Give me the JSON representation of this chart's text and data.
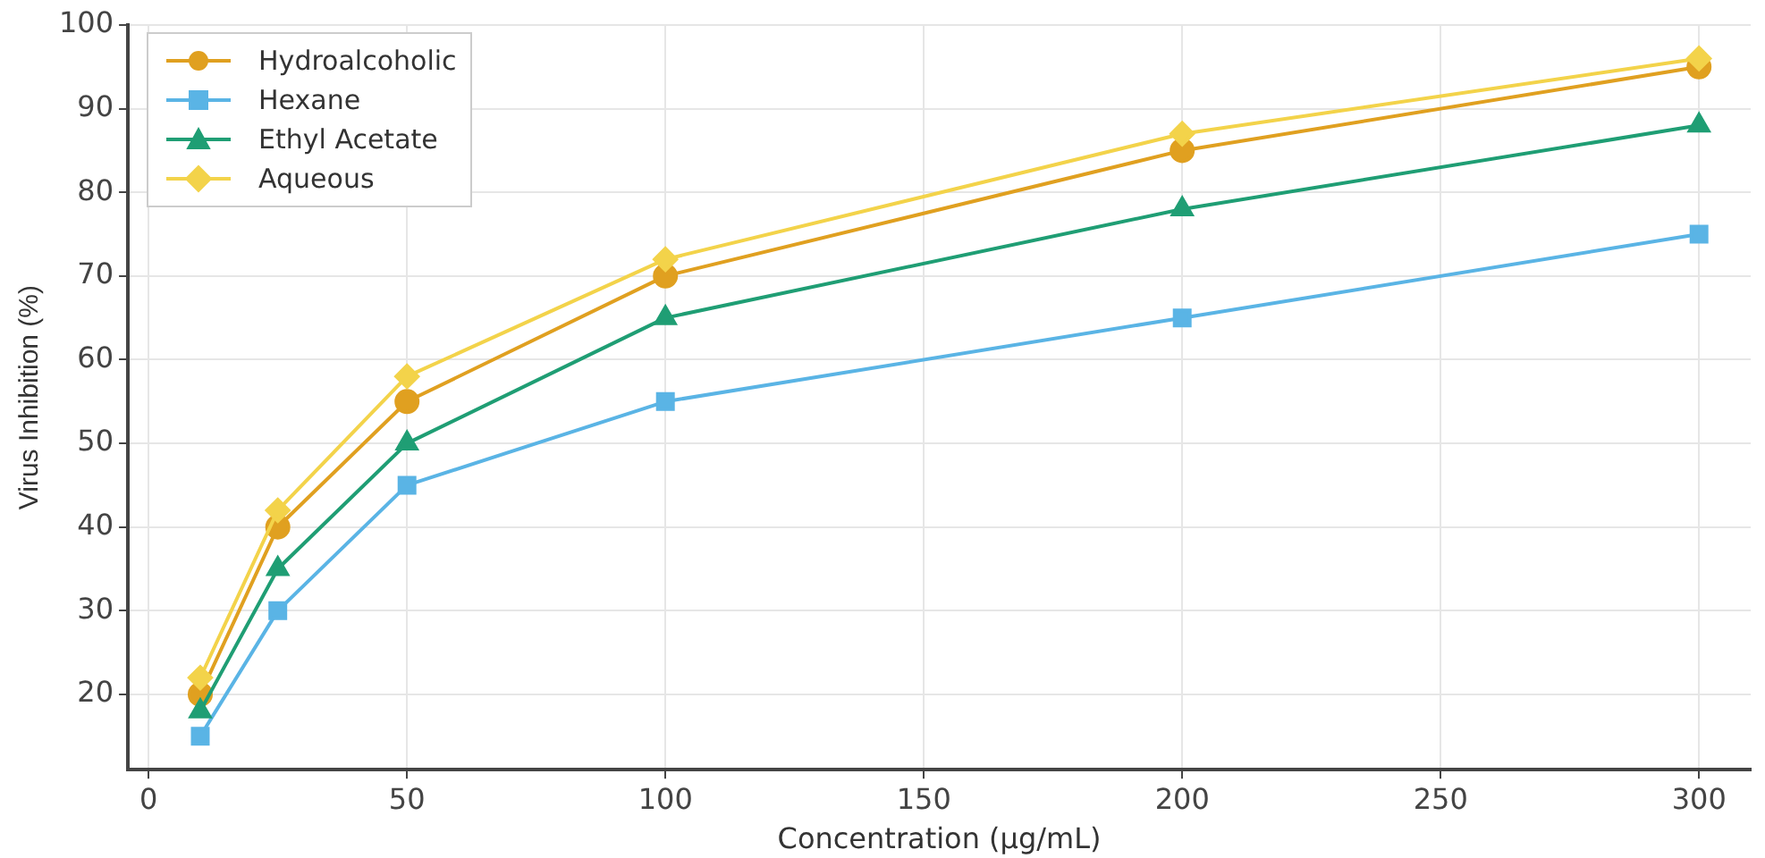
{
  "chart_data": {
    "type": "line",
    "xlabel": "Concentration (µg/mL)",
    "ylabel": "Virus Inhibition (%)",
    "xlim": [
      -4,
      310
    ],
    "ylim": [
      11,
      100
    ],
    "xticks": [
      0,
      50,
      100,
      150,
      200,
      250,
      300
    ],
    "yticks": [
      20,
      30,
      40,
      50,
      60,
      70,
      80,
      90,
      100
    ],
    "grid": true,
    "legend": "top left",
    "x": [
      10,
      25,
      50,
      100,
      200,
      300
    ],
    "series": [
      {
        "name": "Hydroalcoholic",
        "color": "#e0a020",
        "marker": "circle",
        "values": [
          20,
          40,
          55,
          70,
          85,
          95
        ]
      },
      {
        "name": "Hexane",
        "color": "#5ab4e5",
        "marker": "square",
        "values": [
          15,
          30,
          45,
          55,
          65,
          75
        ]
      },
      {
        "name": "Ethyl Acetate",
        "color": "#1f9e74",
        "marker": "triangle",
        "values": [
          18,
          35,
          50,
          65,
          78,
          88
        ]
      },
      {
        "name": "Aqueous",
        "color": "#f3d34a",
        "marker": "diamond",
        "values": [
          22,
          42,
          58,
          72,
          87,
          96
        ]
      }
    ]
  }
}
